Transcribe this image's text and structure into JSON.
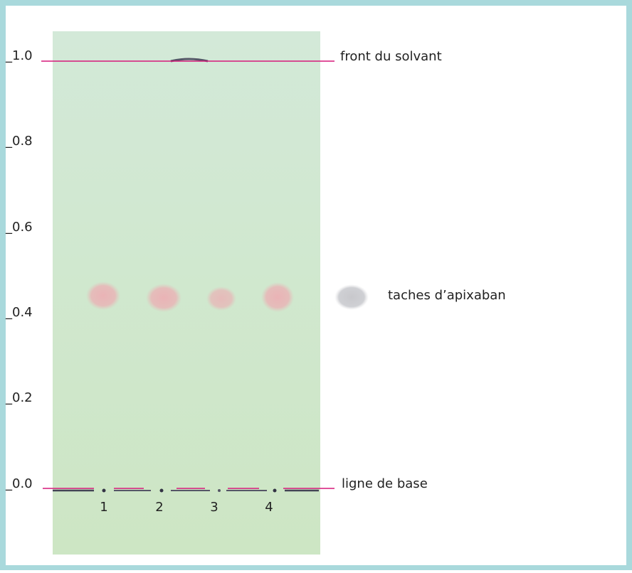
{
  "axis": {
    "ticks": [
      "_1.0",
      "_0.8",
      "_0.6",
      "_0.4",
      "_0.2",
      "_0.0"
    ]
  },
  "labels": {
    "front": "front du solvant",
    "spots": "taches d’apixaban",
    "baseline": "ligne de base"
  },
  "lanes": [
    "1",
    "2",
    "3",
    "4"
  ]
}
